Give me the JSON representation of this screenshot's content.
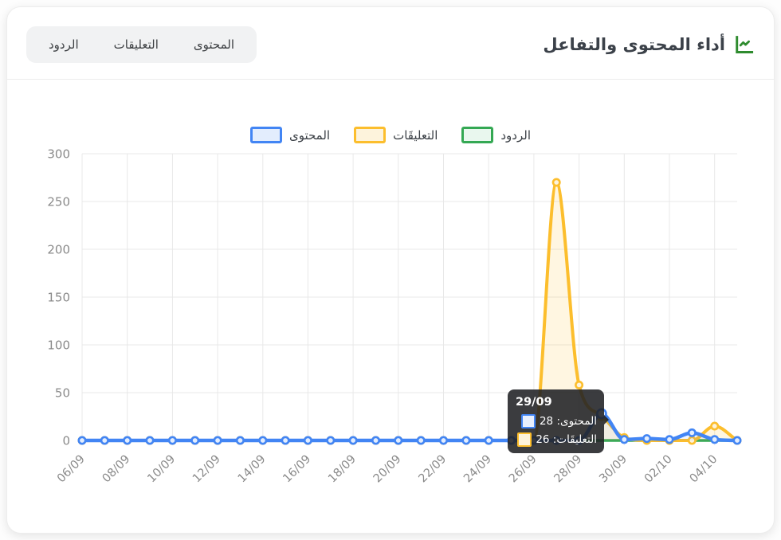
{
  "header": {
    "title": "أداء المحتوى والتفاعل",
    "icon": "line-chart-icon",
    "icon_color": "#2E8B2E"
  },
  "tabs": [
    {
      "label": "المحتوى"
    },
    {
      "label": "التعليقات"
    },
    {
      "label": "الردود"
    }
  ],
  "colors": {
    "grid": "#E8E8E8",
    "axis_text": "#8A8A8A",
    "tab_bg": "#F1F2F3",
    "tooltip_bg": "rgba(32,33,36,0.88)"
  },
  "chart_data": {
    "type": "line",
    "categories": [
      "06/09",
      "07/09",
      "08/09",
      "09/09",
      "10/09",
      "11/09",
      "12/09",
      "13/09",
      "14/09",
      "15/09",
      "16/09",
      "17/09",
      "18/09",
      "19/09",
      "20/09",
      "21/09",
      "22/09",
      "23/09",
      "24/09",
      "25/09",
      "26/09",
      "27/09",
      "28/09",
      "29/09",
      "30/09",
      "01/10",
      "02/10",
      "03/10",
      "04/10",
      "05/10"
    ],
    "x_label_every": 2,
    "ylim": [
      0,
      300
    ],
    "ytick_step": 50,
    "grid": true,
    "legend_position": "top",
    "series": [
      {
        "name": "المحتوى",
        "color": "#4285F4",
        "point_fill": "#E3EDFD",
        "area_fill": "rgba(66,133,244,0.08)",
        "values": [
          0,
          0,
          0,
          0,
          0,
          0,
          0,
          0,
          0,
          0,
          0,
          0,
          0,
          0,
          0,
          0,
          0,
          0,
          0,
          0,
          0,
          0,
          0,
          28,
          1,
          2,
          1,
          8,
          1,
          0
        ]
      },
      {
        "name": "التعليقَات",
        "color": "#FCBE2D",
        "point_fill": "#FDF3DC",
        "area_fill": "rgba(252,190,45,0.14)",
        "values": [
          0,
          0,
          0,
          0,
          0,
          0,
          0,
          0,
          0,
          0,
          0,
          0,
          0,
          0,
          0,
          0,
          0,
          0,
          0,
          0,
          0,
          270,
          58,
          26,
          3,
          0,
          0,
          0,
          15,
          0
        ]
      },
      {
        "name": "الردود",
        "color": "#34A853",
        "point_fill": "#E9F7EE",
        "area_fill": "none",
        "values": [
          0,
          0,
          0,
          0,
          0,
          0,
          0,
          0,
          0,
          0,
          0,
          0,
          0,
          0,
          0,
          0,
          0,
          0,
          0,
          0,
          0,
          0,
          0,
          0,
          0,
          0,
          0,
          0,
          0,
          0
        ]
      }
    ]
  },
  "tooltip": {
    "title": "29/09",
    "day_index": 23,
    "rows": [
      {
        "text": "المحتوى: 28",
        "border": "#4285F4",
        "fill": "#E8F0FE"
      },
      {
        "text": "التعليقَات: 26",
        "border": "#FCBE2D",
        "fill": "#FDF3DC"
      }
    ]
  }
}
